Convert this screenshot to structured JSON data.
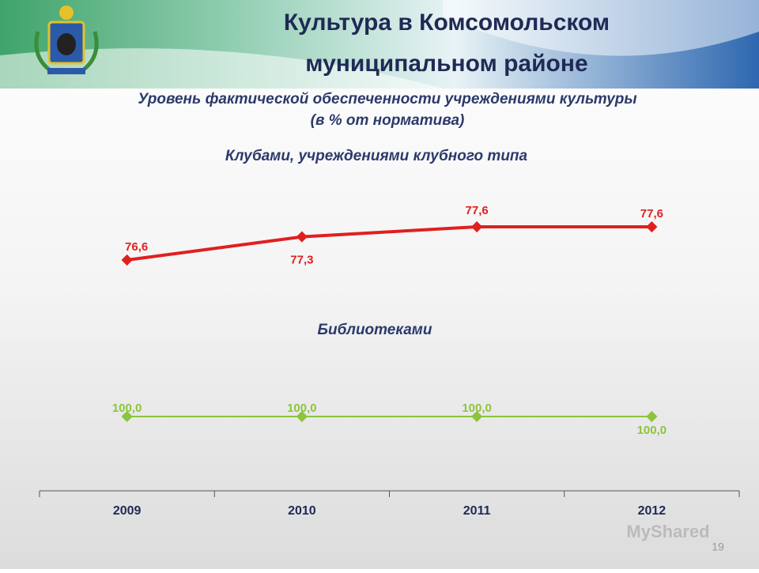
{
  "header": {
    "title_line1": "Культура в Комсомольском",
    "title_line2": "муниципальном районе"
  },
  "chart_data": {
    "type": "line",
    "title": "Уровень фактической обеспеченности учреждениями культуры",
    "subtitle": "(в % от норматива)",
    "categories": [
      "2009",
      "2010",
      "2011",
      "2012"
    ],
    "series": [
      {
        "name": "Клубами, учреждениями клубного типа",
        "color": "#e0201f",
        "values": [
          76.6,
          77.3,
          77.6,
          77.6
        ],
        "value_labels": [
          "76,6",
          "77,3",
          "77,6",
          "77,6"
        ]
      },
      {
        "name": "Библиотеками",
        "color": "#8cc43c",
        "values": [
          100,
          100,
          100,
          100
        ],
        "value_labels": [
          "100,0",
          "100,0",
          "100,0",
          "100,0"
        ]
      }
    ]
  },
  "footer": {
    "page_number": "19",
    "watermark": "MyShared"
  }
}
